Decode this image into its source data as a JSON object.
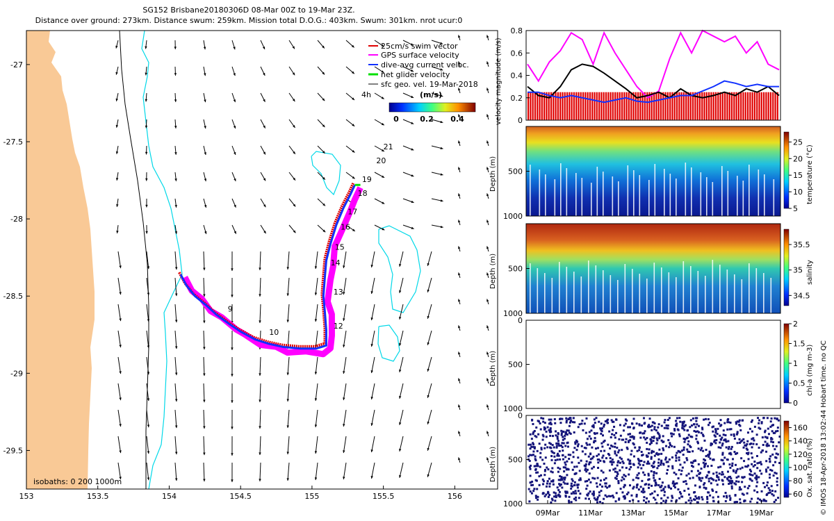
{
  "title_line1": "SG152 Brisbane20180306D 08-Mar 00Z to 19-Mar 23Z.",
  "title_line2": "Distance over ground: 273km. Distance swum: 259km. Mission total D.O.G.: 403km. Swum: 301km. nrot ucur:0",
  "credit": "© IMOS 18-Apr-2018 13:02:44 Hobart time. no QC",
  "colors": {
    "land": "#f9c996",
    "isobath_0": "#000000",
    "isobath_200": "#000000",
    "isobath_1000": "#00d8e8",
    "swim": "#e00000",
    "gps": "#ff00ff",
    "current": "#1030ff",
    "net": "#00e000",
    "arrow": "#000000"
  },
  "chart_data": [
    {
      "type": "map",
      "xticks": [
        "153",
        "153.5",
        "154",
        "154.5",
        "155",
        "155.5",
        "156"
      ],
      "yticks": [
        "-27",
        "-27.5",
        "-28",
        "-28.5",
        "-29",
        "-29.5"
      ],
      "xlim": [
        153,
        156.3
      ],
      "ylim": [
        -29.75,
        -26.78
      ],
      "legend": [
        {
          "label": "25cm/s swim vector",
          "color": "#e00000"
        },
        {
          "label": "GPS surface velocity",
          "color": "#ff00ff"
        },
        {
          "label": "dive-avg current veloc.",
          "color": "#1030ff"
        },
        {
          "label": "net glider velocity",
          "color": "#00e000"
        },
        {
          "label": "sfc geo. vel. 19-Mar-2018",
          "color": "#000000"
        }
      ],
      "legend_placement": "top-right",
      "time_label": "4h",
      "colorbar_title": "(m/s)",
      "colorbar_ticks": [
        "0",
        "0.2",
        "0.4"
      ],
      "isobaths_label": "isobaths: 0   200  1000m",
      "track": [
        [
          154.08,
          -28.36
        ],
        [
          154.12,
          -28.43
        ],
        [
          154.18,
          -28.5
        ],
        [
          154.26,
          -28.56
        ],
        [
          154.33,
          -28.62
        ],
        [
          154.42,
          -28.68
        ],
        [
          154.5,
          -28.73
        ],
        [
          154.6,
          -28.78
        ],
        [
          154.7,
          -28.81
        ],
        [
          154.8,
          -28.83
        ],
        [
          154.92,
          -28.84
        ],
        [
          155.03,
          -28.84
        ],
        [
          155.1,
          -28.82
        ],
        [
          155.1,
          -28.72
        ],
        [
          155.09,
          -28.6
        ],
        [
          155.08,
          -28.5
        ],
        [
          155.09,
          -28.38
        ],
        [
          155.1,
          -28.27
        ],
        [
          155.13,
          -28.16
        ],
        [
          155.17,
          -28.04
        ],
        [
          155.22,
          -27.93
        ],
        [
          155.27,
          -27.84
        ],
        [
          155.3,
          -27.78
        ]
      ],
      "day_labels": [
        {
          "text": "9",
          "lon": 154.41,
          "lat": -28.6
        },
        {
          "text": "10",
          "lon": 154.7,
          "lat": -28.75
        },
        {
          "text": "12",
          "lon": 155.15,
          "lat": -28.71
        },
        {
          "text": "13",
          "lon": 155.15,
          "lat": -28.49
        },
        {
          "text": "14",
          "lon": 155.13,
          "lat": -28.3
        },
        {
          "text": "15",
          "lon": 155.16,
          "lat": -28.2
        },
        {
          "text": "16",
          "lon": 155.2,
          "lat": -28.07
        },
        {
          "text": "17",
          "lon": 155.25,
          "lat": -27.97
        },
        {
          "text": "18",
          "lon": 155.32,
          "lat": -27.85
        },
        {
          "text": "19",
          "lon": 155.35,
          "lat": -27.76
        },
        {
          "text": "20",
          "lon": 155.45,
          "lat": -27.64
        },
        {
          "text": "21",
          "lon": 155.5,
          "lat": -27.55
        }
      ]
    },
    {
      "type": "line",
      "ylabel": "velocity magnitude (m/s)",
      "yticks": [
        "0",
        "0.2",
        "0.4",
        "0.6",
        "0.8"
      ],
      "ylim": [
        0,
        0.8
      ],
      "series": [
        {
          "color": "#e00000",
          "values": [
            0.25,
            0.25,
            0.25,
            0.25,
            0.25,
            0.25,
            0.25,
            0.25,
            0.25,
            0.25,
            0.25,
            0.25,
            0.25,
            0.25,
            0.25,
            0.25,
            0.25,
            0.25,
            0.25,
            0.25,
            0.25,
            0.25,
            0.25,
            0.25
          ]
        },
        {
          "color": "#ff00ff",
          "values": [
            0.5,
            0.35,
            0.52,
            0.62,
            0.78,
            0.72,
            0.5,
            0.78,
            0.6,
            0.45,
            0.3,
            0.2,
            0.26,
            0.55,
            0.78,
            0.6,
            0.8,
            0.75,
            0.7,
            0.75,
            0.6,
            0.7,
            0.5,
            0.45
          ]
        },
        {
          "color": "#000000",
          "values": [
            0.3,
            0.22,
            0.2,
            0.3,
            0.45,
            0.5,
            0.48,
            0.42,
            0.35,
            0.28,
            0.2,
            0.22,
            0.25,
            0.2,
            0.28,
            0.22,
            0.2,
            0.22,
            0.25,
            0.22,
            0.28,
            0.25,
            0.3,
            0.22
          ]
        },
        {
          "color": "#1030ff",
          "values": [
            0.25,
            0.25,
            0.22,
            0.2,
            0.22,
            0.2,
            0.18,
            0.16,
            0.18,
            0.2,
            0.17,
            0.16,
            0.18,
            0.2,
            0.22,
            0.22,
            0.26,
            0.3,
            0.35,
            0.33,
            0.3,
            0.32,
            0.3,
            0.3
          ]
        }
      ]
    },
    {
      "type": "heatmap",
      "ylabel": "Depth (m)",
      "yticks": [
        "500",
        "1000"
      ],
      "ylim": [
        1000,
        0
      ],
      "colorbar_label": "temperature (°C)",
      "colorbar_ticks": [
        "5",
        "10",
        "15",
        "20",
        "25"
      ],
      "clim": [
        5,
        28
      ]
    },
    {
      "type": "heatmap",
      "ylabel": "Depth (m)",
      "yticks": [
        "500",
        "1000"
      ],
      "ylim": [
        1000,
        0
      ],
      "colorbar_label": "salinity",
      "colorbar_ticks": [
        "34.5",
        "35",
        "35.5"
      ],
      "clim": [
        34.3,
        35.8
      ]
    },
    {
      "type": "heatmap",
      "ylabel": "Depth (m)",
      "yticks": [
        "0",
        "500",
        "1000"
      ],
      "ylim": [
        1000,
        0
      ],
      "colorbar_label": "chl-a (mg m-3)",
      "colorbar_ticks": [
        "0",
        "0.5",
        "1",
        "1.5",
        "2"
      ],
      "clim": [
        0,
        2
      ]
    },
    {
      "type": "heatmap",
      "ylabel": "Depth (m)",
      "yticks": [
        "0",
        "500",
        "1000"
      ],
      "ylim": [
        1000,
        0
      ],
      "colorbar_label": "Ox. sat. ratio (%)",
      "colorbar_ticks": [
        "60",
        "80",
        "100",
        "120",
        "140",
        "160"
      ],
      "clim": [
        55,
        170
      ],
      "xticks": [
        "09Mar",
        "11Mar",
        "13Mar",
        "15Mar",
        "17Mar",
        "19Mar"
      ]
    }
  ]
}
